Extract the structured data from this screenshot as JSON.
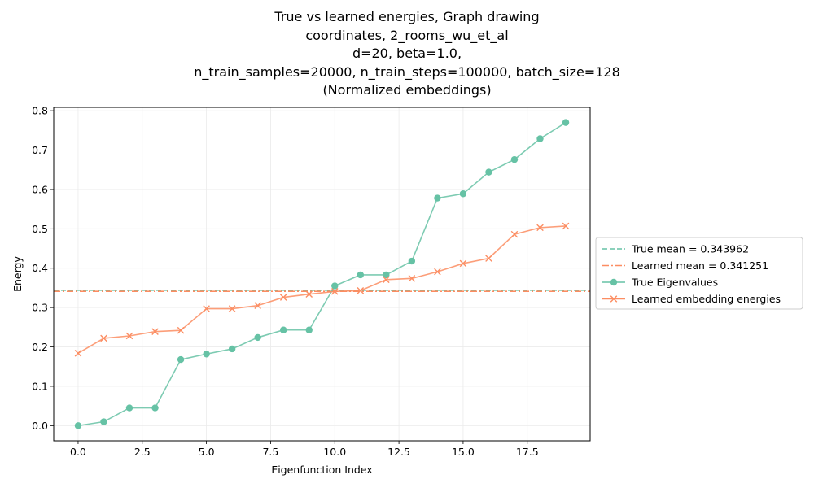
{
  "chart_data": {
    "type": "line",
    "title_lines": [
      "True vs learned energies, Graph drawing",
      "coordinates, 2_rooms_wu_et_al",
      "d=20, beta=1.0,",
      "n_train_samples=20000, n_train_steps=100000, batch_size=128",
      "(Normalized embeddings)"
    ],
    "xlabel": "Eigenfunction Index",
    "ylabel": "Energy",
    "xlim": [
      -0.95,
      19.95
    ],
    "ylim": [
      -0.0385,
      0.8085
    ],
    "xticks": [
      0.0,
      2.5,
      5.0,
      7.5,
      10.0,
      12.5,
      15.0,
      17.5
    ],
    "xtick_labels": [
      "0.0",
      "2.5",
      "5.0",
      "7.5",
      "10.0",
      "12.5",
      "15.0",
      "17.5"
    ],
    "yticks": [
      0.0,
      0.1,
      0.2,
      0.3,
      0.4,
      0.5,
      0.6,
      0.7,
      0.8
    ],
    "ytick_labels": [
      "0.0",
      "0.1",
      "0.2",
      "0.3",
      "0.4",
      "0.5",
      "0.6",
      "0.7",
      "0.8"
    ],
    "grid": true,
    "legend_position": "outside-right",
    "x": [
      0,
      1,
      2,
      3,
      4,
      5,
      6,
      7,
      8,
      9,
      10,
      11,
      12,
      13,
      14,
      15,
      16,
      17,
      18,
      19
    ],
    "series": [
      {
        "name": "True Eigenvalues",
        "color": "#66c2a5",
        "marker": "circle",
        "values": [
          0.0,
          0.01,
          0.045,
          0.045,
          0.168,
          0.182,
          0.195,
          0.224,
          0.243,
          0.243,
          0.355,
          0.383,
          0.383,
          0.418,
          0.578,
          0.589,
          0.644,
          0.676,
          0.729,
          0.77
        ]
      },
      {
        "name": "Learned embedding energies",
        "color": "#fc8d62",
        "marker": "x",
        "values": [
          0.184,
          0.222,
          0.228,
          0.239,
          0.242,
          0.297,
          0.297,
          0.305,
          0.326,
          0.334,
          0.341,
          0.343,
          0.371,
          0.374,
          0.391,
          0.412,
          0.425,
          0.486,
          0.503,
          0.507
        ]
      }
    ],
    "hlines": [
      {
        "name": "True mean = 0.343962",
        "value": 0.343962,
        "color": "#66c2a5",
        "style": "dashed"
      },
      {
        "name": "Learned mean = 0.341251",
        "value": 0.341251,
        "color": "#fc8d62",
        "style": "dashdot"
      }
    ]
  }
}
